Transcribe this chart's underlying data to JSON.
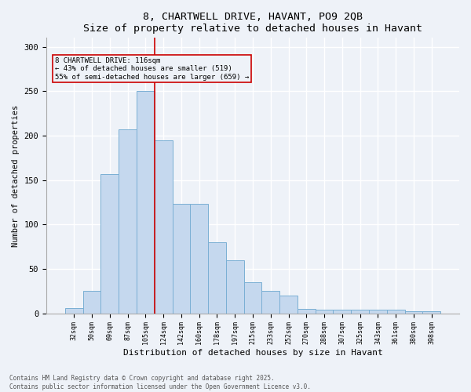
{
  "title_line1": "8, CHARTWELL DRIVE, HAVANT, PO9 2QB",
  "title_line2": "Size of property relative to detached houses in Havant",
  "xlabel": "Distribution of detached houses by size in Havant",
  "ylabel": "Number of detached properties",
  "categories": [
    "32sqm",
    "50sqm",
    "69sqm",
    "87sqm",
    "105sqm",
    "124sqm",
    "142sqm",
    "160sqm",
    "178sqm",
    "197sqm",
    "215sqm",
    "233sqm",
    "252sqm",
    "270sqm",
    "288sqm",
    "307sqm",
    "325sqm",
    "343sqm",
    "361sqm",
    "380sqm",
    "398sqm"
  ],
  "values": [
    6,
    25,
    157,
    207,
    250,
    195,
    123,
    123,
    80,
    60,
    35,
    25,
    20,
    5,
    4,
    4,
    4,
    4,
    4,
    2,
    2
  ],
  "bar_color": "#c5d8ee",
  "bar_edge_color": "#7aafd4",
  "background_color": "#eef2f8",
  "grid_color": "#ffffff",
  "vline_x_index": 4,
  "vline_color": "#cc0000",
  "annotation_text": "8 CHARTWELL DRIVE: 116sqm\n← 43% of detached houses are smaller (519)\n55% of semi-detached houses are larger (659) →",
  "annotation_box_color": "#cc0000",
  "footer_line1": "Contains HM Land Registry data © Crown copyright and database right 2025.",
  "footer_line2": "Contains public sector information licensed under the Open Government Licence v3.0.",
  "ylim": [
    0,
    310
  ],
  "yticks": [
    0,
    50,
    100,
    150,
    200,
    250,
    300
  ]
}
